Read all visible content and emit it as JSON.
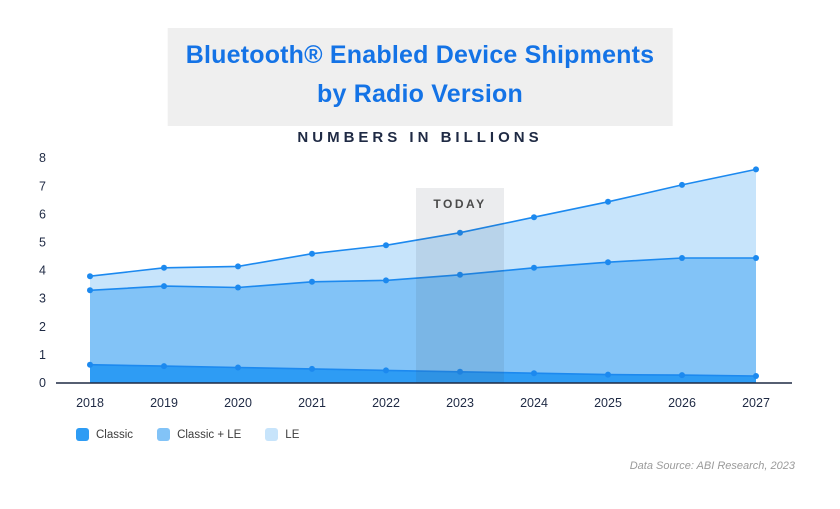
{
  "header": {
    "title_line1": "Bluetooth® Enabled Device Shipments",
    "title_line2": "by Radio Version",
    "subtitle": "NUMBERS IN BILLIONS"
  },
  "chart_data": {
    "type": "area",
    "stacked": true,
    "title": "Bluetooth® Enabled Device Shipments by Radio Version",
    "subtitle": "Numbers in Billions",
    "categories": [
      2018,
      2019,
      2020,
      2021,
      2022,
      2023,
      2024,
      2025,
      2026,
      2027
    ],
    "series": [
      {
        "name": "Classic",
        "color": "#2E9CF4",
        "values": [
          0.65,
          0.6,
          0.55,
          0.5,
          0.45,
          0.4,
          0.35,
          0.3,
          0.28,
          0.25
        ],
        "cumulative_top": [
          0.65,
          0.6,
          0.55,
          0.5,
          0.45,
          0.4,
          0.35,
          0.3,
          0.28,
          0.25
        ]
      },
      {
        "name": "Classic + LE",
        "color": "#82C3F7",
        "values": [
          2.65,
          2.85,
          2.85,
          3.1,
          3.2,
          3.45,
          3.75,
          4.0,
          4.17,
          4.2
        ],
        "cumulative_top": [
          3.3,
          3.45,
          3.4,
          3.6,
          3.65,
          3.85,
          4.1,
          4.3,
          4.45,
          4.45
        ]
      },
      {
        "name": "LE",
        "color": "#C7E4FB",
        "values": [
          0.5,
          0.65,
          0.75,
          1.0,
          1.25,
          1.5,
          1.8,
          2.15,
          2.6,
          3.15
        ],
        "cumulative_top": [
          3.8,
          4.1,
          4.15,
          4.6,
          4.9,
          5.35,
          5.9,
          6.45,
          7.05,
          7.6
        ]
      }
    ],
    "note": "cumulative_top = stacked boundary heights as read from the y-axis",
    "line_color": "#1C89EF",
    "xlabel": "",
    "ylabel": "",
    "ylim": [
      0,
      8
    ],
    "yticks": [
      0,
      1,
      2,
      3,
      4,
      5,
      6,
      7,
      8
    ],
    "grid": false,
    "legend_position": "bottom-left",
    "annotation": {
      "label": "TODAY",
      "x": 2023
    }
  },
  "legend": {
    "items": [
      {
        "label": "Classic",
        "color": "#2E9CF4"
      },
      {
        "label": "Classic + LE",
        "color": "#82C3F7"
      },
      {
        "label": "LE",
        "color": "#C7E4FB"
      }
    ]
  },
  "footer": {
    "source": "Data Source: ABI Research, 2023"
  }
}
